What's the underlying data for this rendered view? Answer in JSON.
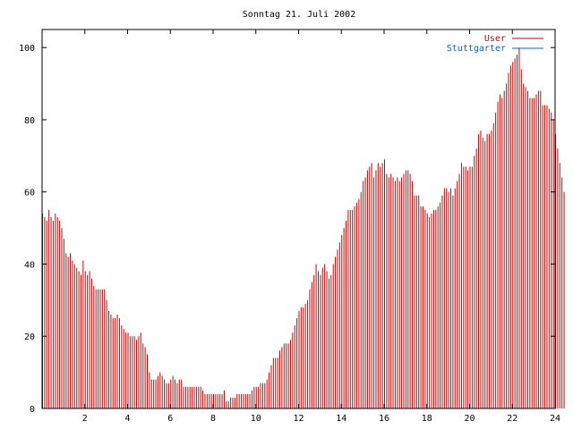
{
  "chart_data": {
    "type": "bar",
    "title": "Sonntag 21. Juli 2002",
    "xlabel": "",
    "ylabel": "",
    "xlim": [
      0,
      24
    ],
    "ylim": [
      0,
      105
    ],
    "xticks": [
      "2",
      "4",
      "6",
      "8",
      "10",
      "12",
      "14",
      "16",
      "18",
      "20",
      "22",
      "24"
    ],
    "yticks": [
      "0",
      "20",
      "40",
      "60",
      "80",
      "100"
    ],
    "grid": false,
    "legend_position": "top-right",
    "series": [
      {
        "name": "User",
        "color": "#cc0000",
        "x_start": 0,
        "x_step": 0.1,
        "values": [
          54,
          53,
          52,
          55,
          53,
          52,
          54,
          53,
          52,
          50,
          47,
          43,
          42,
          43,
          41,
          40,
          39,
          38,
          37,
          41,
          38,
          37,
          38,
          36,
          34,
          33,
          33,
          33,
          33,
          33,
          30,
          27,
          26,
          25,
          25,
          26,
          25,
          23,
          22,
          21,
          21,
          20,
          20,
          20,
          19,
          20,
          21,
          18,
          17,
          15,
          10,
          8,
          8,
          8,
          9,
          10,
          9,
          8,
          7,
          7,
          8,
          9,
          8,
          7,
          8,
          8,
          6,
          6,
          6,
          6,
          6,
          6,
          6,
          6,
          6,
          5,
          4,
          4,
          4,
          4,
          4,
          4,
          4,
          4,
          4,
          5,
          2,
          2,
          3,
          3,
          3,
          4,
          4,
          4,
          4,
          4,
          4,
          4,
          5,
          6,
          6,
          6,
          7,
          7,
          7,
          8,
          10,
          12,
          14,
          14,
          14,
          16,
          17,
          18,
          18,
          18,
          19,
          21,
          23,
          25,
          27,
          28,
          28,
          29,
          30,
          33,
          35,
          37,
          40,
          38,
          37,
          39,
          40,
          38,
          36,
          37,
          40,
          42,
          44,
          46,
          48,
          50,
          52,
          55,
          55,
          55,
          56,
          57,
          58,
          60,
          63,
          64,
          66,
          67,
          68,
          64,
          66,
          68,
          67,
          68,
          69,
          65,
          64,
          65,
          64,
          63,
          64,
          63,
          64,
          65,
          66,
          66,
          65,
          63,
          59,
          59,
          59,
          56,
          56,
          55,
          54,
          53,
          54,
          55,
          55,
          56,
          57,
          59,
          61,
          61,
          60,
          61,
          59,
          61,
          63,
          65,
          68,
          67,
          67,
          66,
          67,
          67,
          70,
          72,
          76,
          77,
          75,
          74,
          76,
          76,
          77,
          79,
          82,
          85,
          87,
          86,
          88,
          90,
          93,
          95,
          96,
          97,
          98,
          100,
          94,
          90,
          89,
          88,
          86,
          86,
          86,
          87,
          88,
          88,
          84,
          84,
          84,
          83,
          82,
          80,
          76,
          72,
          68,
          64,
          60
        ]
      },
      {
        "name": "Stuttgarter",
        "color": "#0066cc",
        "x_start": 0,
        "x_step": 0.1,
        "values": []
      }
    ]
  }
}
